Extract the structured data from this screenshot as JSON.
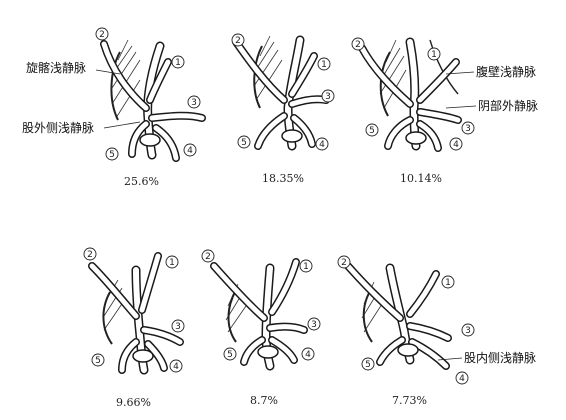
{
  "labels": {
    "p1_left_top": "旋髂浅静脉",
    "p1_left_bottom": "股外侧浅静脉",
    "p3_right_top": "腹壁浅静脉",
    "p3_right_bottom": "阴部外静脉",
    "p6_right": "股内侧浅静脉"
  },
  "percentages": [
    "25.6%",
    "18.35%",
    "10.14%",
    "9.66%",
    "8.7%",
    "7.73%"
  ],
  "markers": {
    "one": "①",
    "two": "②",
    "three": "③",
    "four": "④",
    "five": "⑤"
  }
}
